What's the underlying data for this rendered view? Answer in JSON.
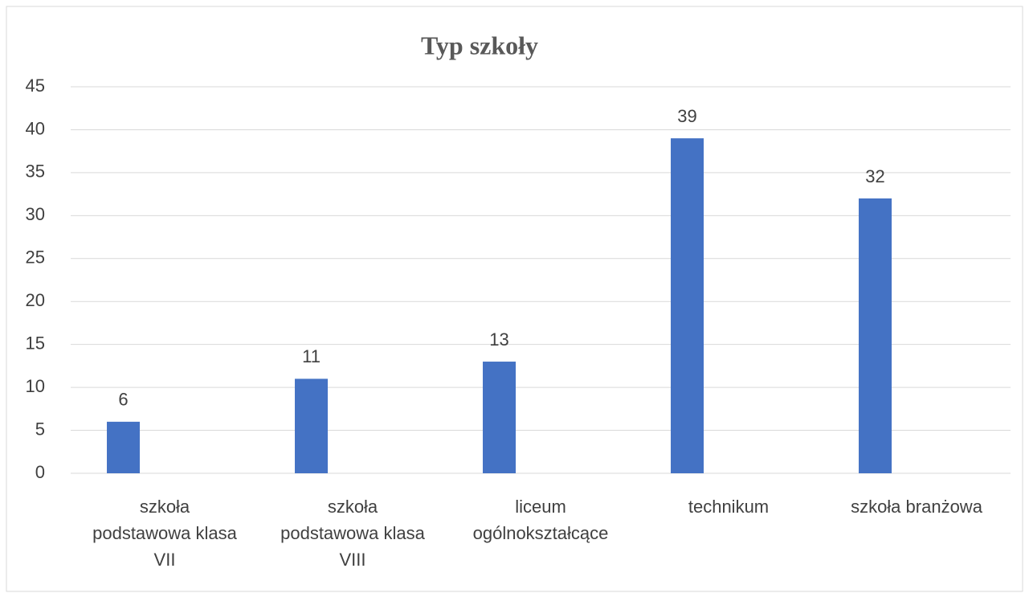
{
  "chart_data": {
    "type": "bar",
    "title": "Typ szkoły",
    "categories": [
      "szkoła podstawowa klasa VII",
      "szkoła podstawowa klasa VIII",
      "liceum ogólnokształcące",
      "technikum",
      "szkoła branżowa"
    ],
    "values": [
      6,
      11,
      13,
      39,
      32
    ],
    "color": "#4472c4",
    "ylim": [
      0,
      45
    ],
    "yticks": [
      0,
      5,
      10,
      15,
      20,
      25,
      30,
      35,
      40,
      45
    ],
    "grid": true
  }
}
